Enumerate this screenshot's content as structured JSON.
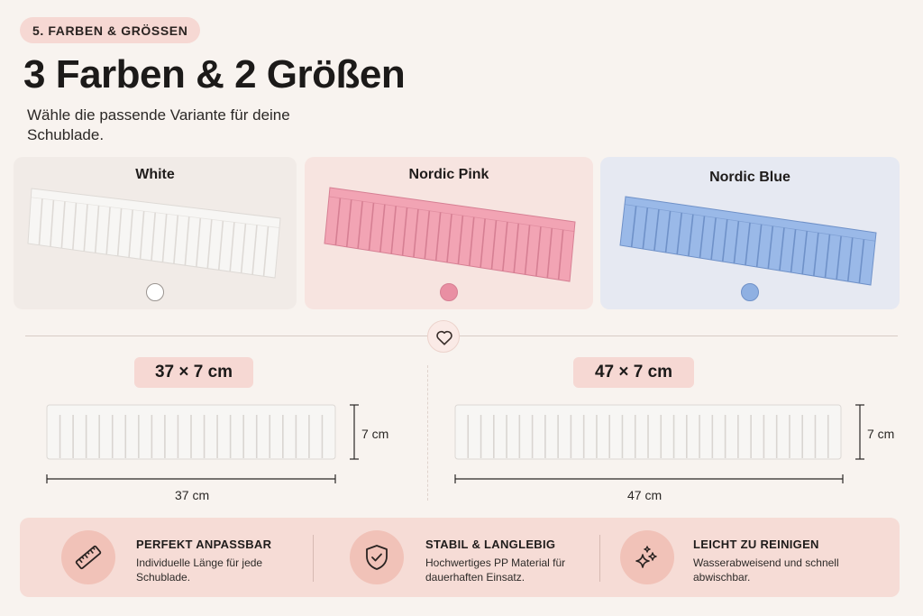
{
  "header": {
    "badge": "5. FARBEN & GRÖSSEN",
    "title": "3 Farben & 2 Größen",
    "subtitle": "Wähle die passende Variante für deine Schublade."
  },
  "colors": [
    {
      "name": "White",
      "swatch": "#ffffff",
      "card_bg": "#f1ebe7",
      "strip": "#f7f6f4",
      "strip_edge": "#dedad6"
    },
    {
      "name": "Nordic Pink",
      "swatch": "#e98fa3",
      "card_bg": "#f7e4e0",
      "strip": "#f2a4b4",
      "strip_edge": "#d67f93"
    },
    {
      "name": "Nordic Blue",
      "swatch": "#8fb0e2",
      "card_bg": "#e6e9f2",
      "strip": "#9ab9e8",
      "strip_edge": "#6f91c8"
    }
  ],
  "sizes": [
    {
      "label": "37 × 7 cm",
      "height_label": "7 cm",
      "length_label": "37 cm"
    },
    {
      "label": "47 × 7 cm",
      "height_label": "7 cm",
      "length_label": "47 cm"
    }
  ],
  "features": [
    {
      "icon": "ruler-icon",
      "title": "PERFEKT ANPASSBAR",
      "desc": "Individuelle Länge für jede Schublade."
    },
    {
      "icon": "shield-check-icon",
      "title": "STABIL & LANGLEBIG",
      "desc": "Hochwertiges PP Material für dauerhaften Einsatz."
    },
    {
      "icon": "sparkle-icon",
      "title": "LEICHT ZU REINIGEN",
      "desc": "Wasserabweisend und schnell abwischbar."
    }
  ],
  "theme": {
    "accent": "#f6d8d3",
    "icon_bg": "#f1c2b8",
    "heart": "#3a2f2c"
  }
}
